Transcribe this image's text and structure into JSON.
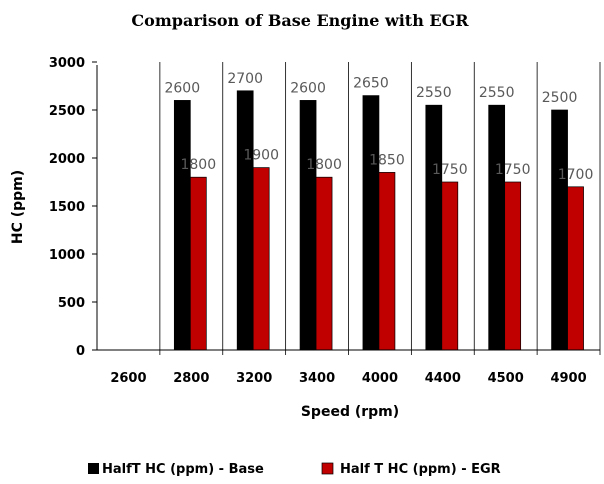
{
  "chart_data": {
    "type": "bar",
    "title": "Comparison of Base Engine with EGR",
    "xlabel": "Speed (rpm)",
    "ylabel": "HC (ppm)",
    "categories": [
      "2600",
      "2800",
      "3200",
      "3400",
      "4000",
      "4400",
      "4500",
      "4900"
    ],
    "ylim": [
      0,
      3000
    ],
    "yticks": [
      0,
      500,
      1000,
      1500,
      2000,
      2500,
      3000
    ],
    "grid": "vertical separators between categories",
    "legend_position": "bottom",
    "series": [
      {
        "name": "HalfT HC (ppm) - Base",
        "color": "#000000",
        "values": [
          null,
          2600,
          2700,
          2600,
          2650,
          2550,
          2550,
          2500
        ],
        "labels": [
          "",
          "2600",
          "2700",
          "2600",
          "2650",
          "2550",
          "2550",
          "2500"
        ]
      },
      {
        "name": "Half T HC (ppm) - EGR",
        "color": "#c00000",
        "values": [
          null,
          1800,
          1900,
          1800,
          1850,
          1750,
          1750,
          1700
        ],
        "labels": [
          "",
          "1800",
          "1900",
          "1800",
          "1850",
          "1750",
          "1750",
          "1700"
        ]
      }
    ]
  }
}
